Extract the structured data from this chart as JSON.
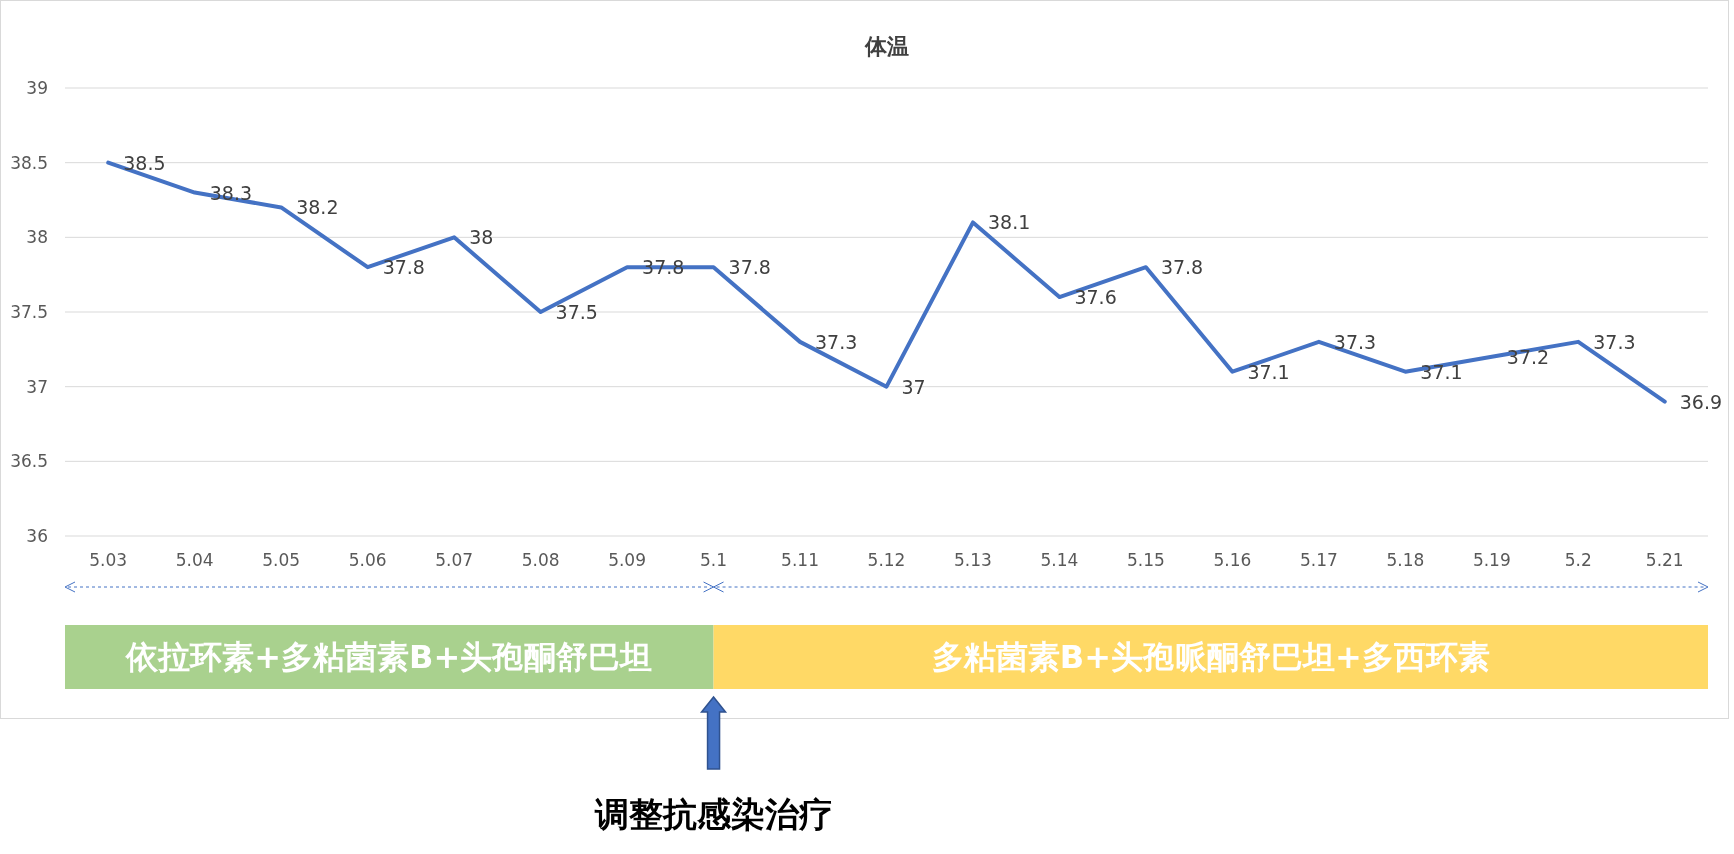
{
  "chart_data": {
    "type": "line",
    "title": "体温",
    "categories": [
      "5.03",
      "5.04",
      "5.05",
      "5.06",
      "5.07",
      "5.08",
      "5.09",
      "5.1",
      "5.11",
      "5.12",
      "5.13",
      "5.14",
      "5.15",
      "5.16",
      "5.17",
      "5.18",
      "5.19",
      "5.2",
      "5.21"
    ],
    "series": [
      {
        "color": "#4472c4",
        "values": [
          38.5,
          38.3,
          38.2,
          37.8,
          38,
          37.5,
          37.8,
          37.8,
          37.3,
          37,
          38.1,
          37.6,
          37.8,
          37.1,
          37.3,
          37.1,
          37.2,
          37.3,
          36.9
        ]
      }
    ],
    "ylim": [
      36,
      39
    ],
    "yticks": [
      36,
      36.5,
      37,
      37.5,
      38,
      38.5,
      39
    ],
    "grid": "y",
    "data_labels": true,
    "marker": "none",
    "line_style": "solid",
    "annotations": [
      "依拉环素+多粘菌素B+头孢酮舒巴坦",
      "多粘菌素B+头孢哌酮舒巴坦+多西环素",
      "调整抗感染治疗"
    ]
  }
}
